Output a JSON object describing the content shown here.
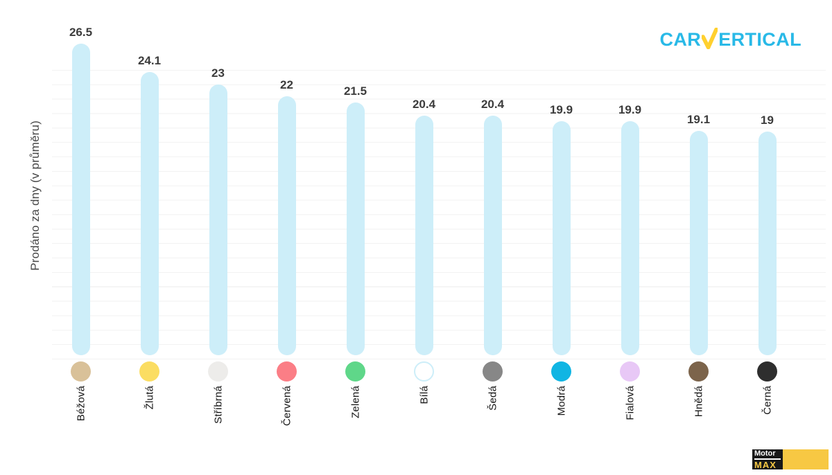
{
  "page": {
    "background": "#ffffff"
  },
  "header": {
    "brand": {
      "car": "CAR",
      "v_icon": "checkmark-v",
      "ertical": "ERTICAL",
      "cyan": "#29b9e7",
      "yellow": "#ffd02f"
    }
  },
  "chart_data": {
    "type": "bar",
    "title": "",
    "xlabel": "",
    "ylabel": "Prodáno za dny (v průměru)",
    "ylim": [
      0,
      28
    ],
    "grid": "faint horizontal lines, no axis ticks",
    "legend": "none",
    "bar_color": "#cdeef9",
    "value_label_color": "#3c3c3c",
    "categories": [
      "Béžová",
      "Žlutá",
      "Stříbrná",
      "Červená",
      "Zelená",
      "Bílá",
      "Šedá",
      "Modrá",
      "Fialová",
      "Hnědá",
      "Černá"
    ],
    "values": [
      26.5,
      24.1,
      23,
      22,
      21.5,
      20.4,
      20.4,
      19.9,
      19.9,
      19.1,
      19
    ],
    "value_labels": [
      "26.5",
      "24.1",
      "23",
      "22",
      "21.5",
      "20.4",
      "20.4",
      "19.9",
      "19.9",
      "19.1",
      "19"
    ],
    "swatch_colors": [
      "#d9c199",
      "#fbdd62",
      "#edecea",
      "#fb7e86",
      "#5fd789",
      "#ffffff",
      "#878787",
      "#10b5e3",
      "#e8c8f6",
      "#7c644b",
      "#2e2e2e"
    ],
    "white_swatch_border": "#cdeef9"
  },
  "footer": {
    "motor": "Motor",
    "max": "MAX",
    "logo_black": "#181818",
    "logo_yellow": "#f7c843"
  }
}
